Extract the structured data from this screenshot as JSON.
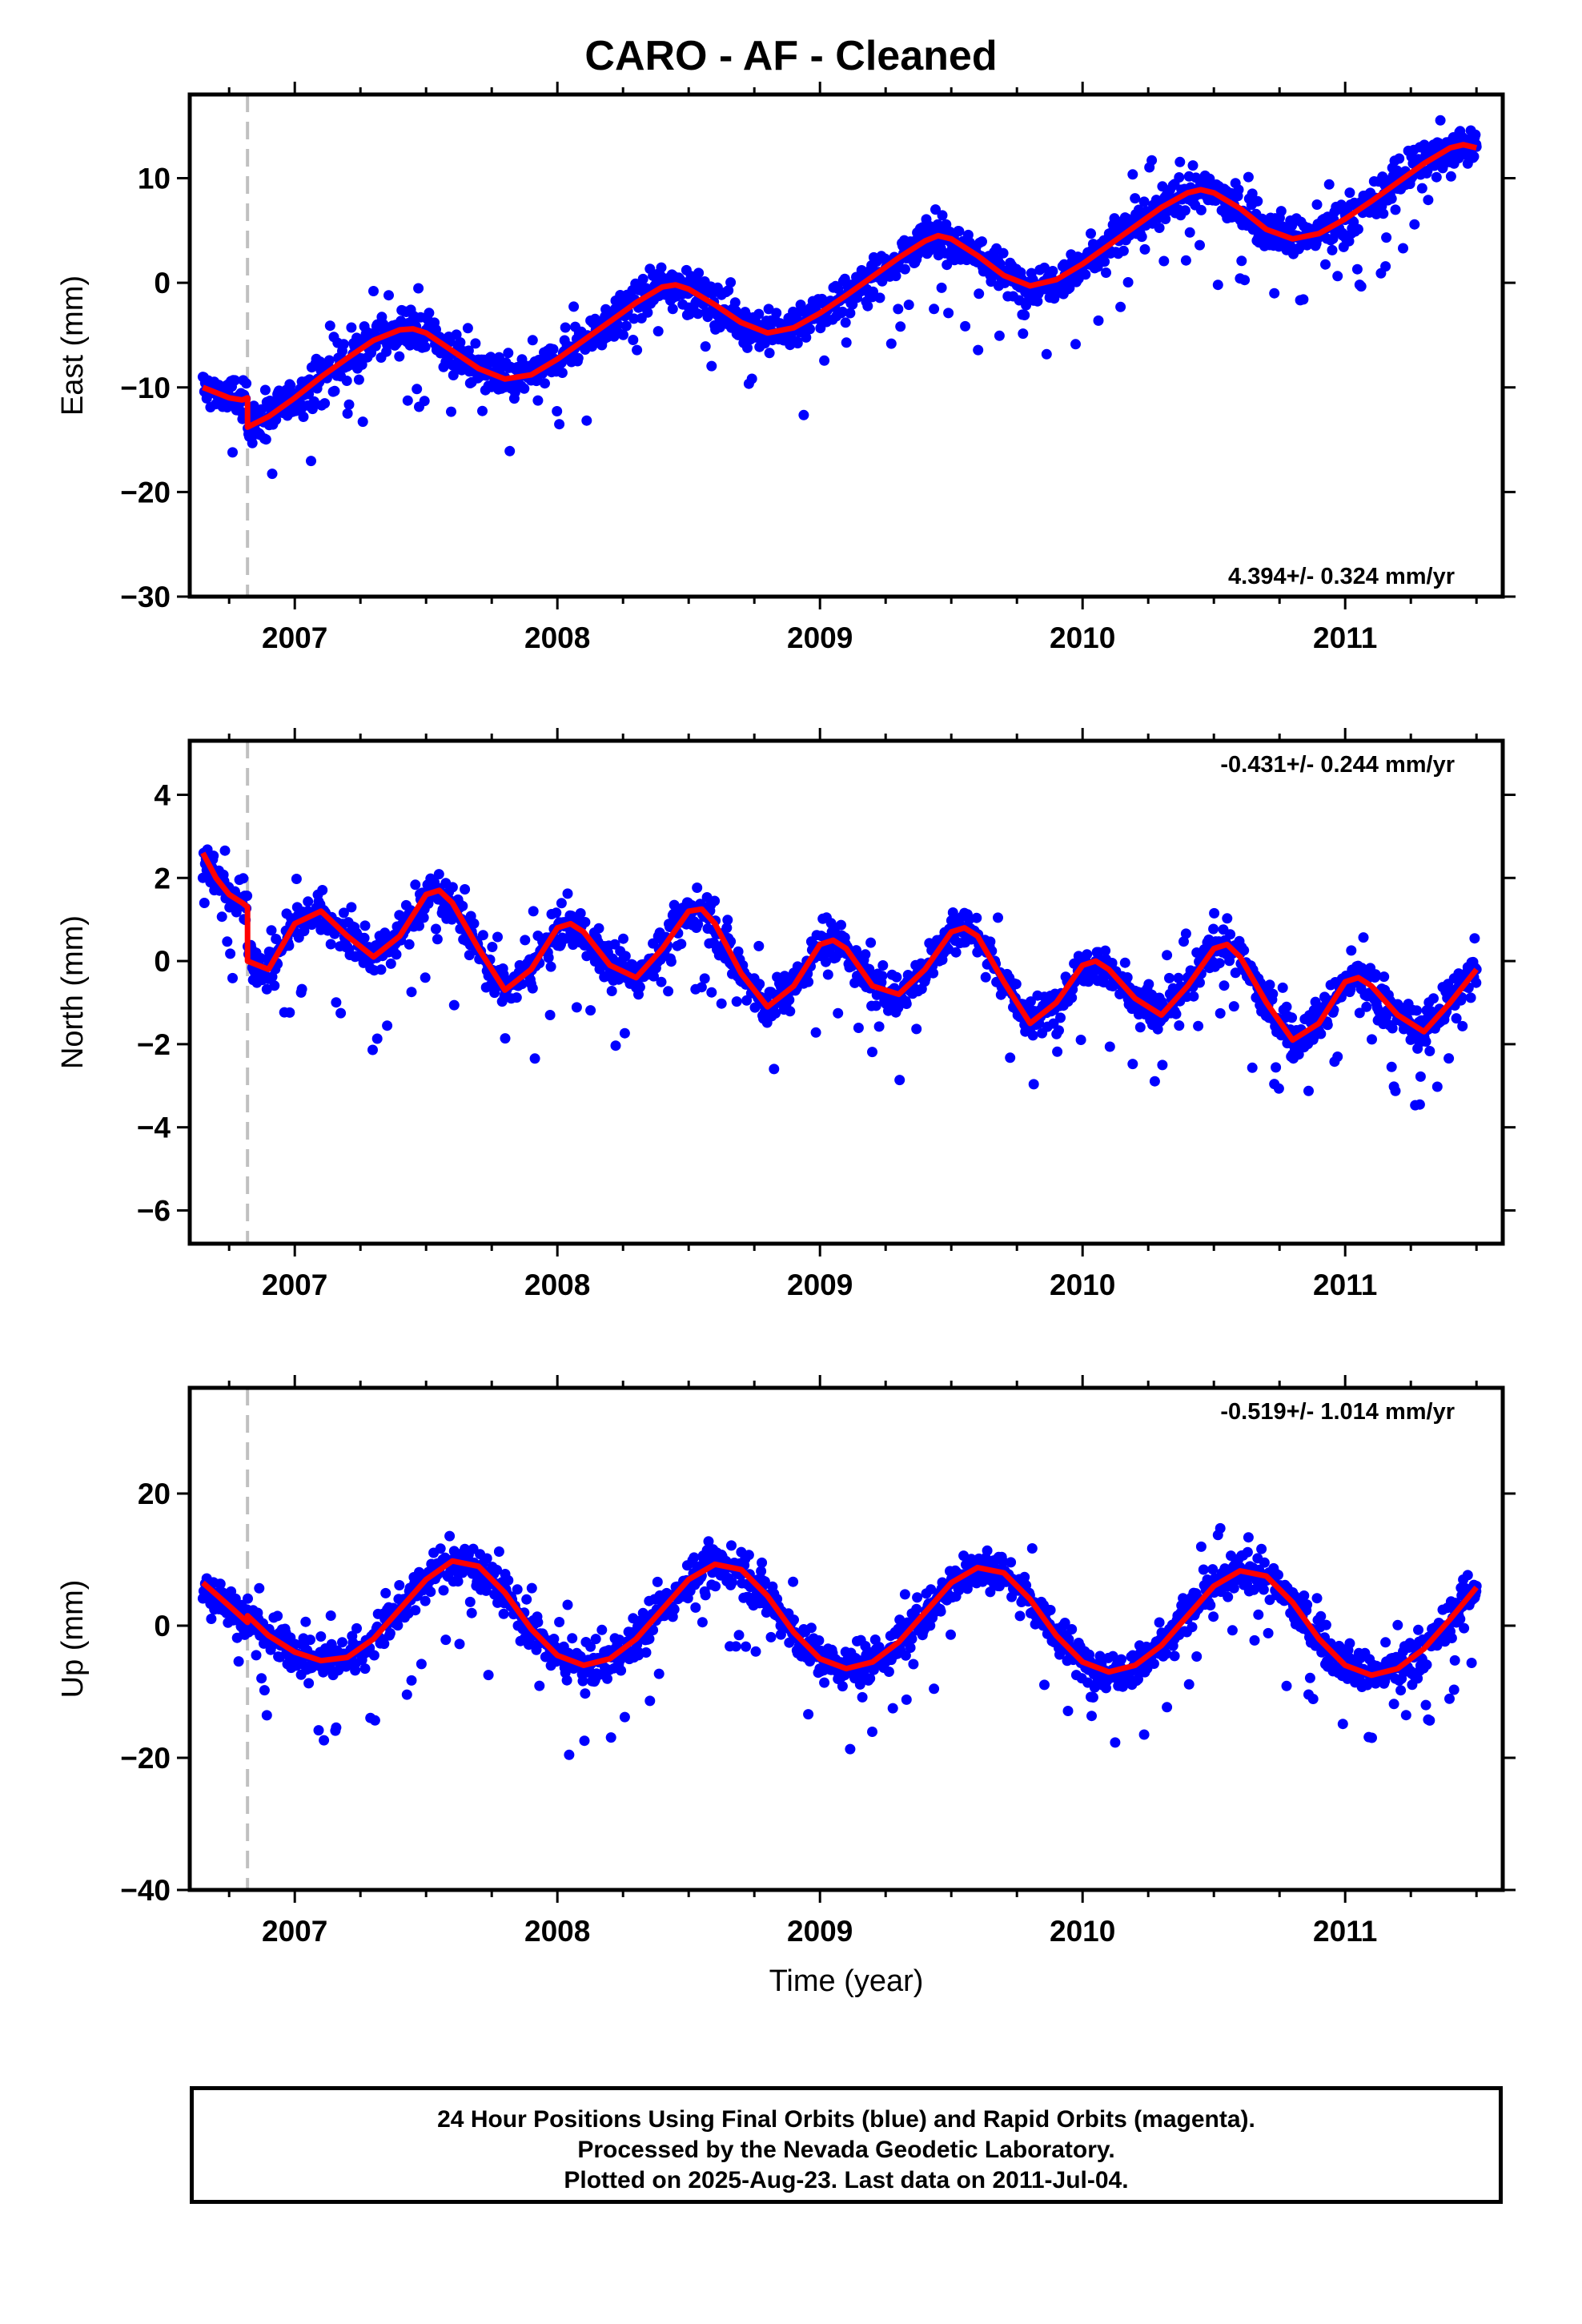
{
  "title": "CARO  - AF - Cleaned",
  "colors": {
    "final_orbits": "#0000ff",
    "model_fit": "#ff0000",
    "event_marker": "#c0c0c0",
    "frame": "#000000"
  },
  "chart_data": [
    {
      "type": "scatter",
      "component": "East",
      "ylabel": "East (mm)",
      "xlabel": "",
      "xlim": [
        2006.6,
        2011.6
      ],
      "ylim": [
        -30,
        18
      ],
      "x_ticks": [
        2007,
        2008,
        2009,
        2010,
        2011
      ],
      "y_ticks": [
        -30,
        -20,
        -10,
        0,
        10
      ],
      "y_tick_labels": [
        "−30",
        "−20",
        "−10",
        "0",
        "10"
      ],
      "rate_label": "4.394+/- 0.324 mm/yr",
      "rate_label_position": "bottom-right",
      "event_line_x": 2006.82,
      "series": [
        {
          "name": "Final Orbits (blue)",
          "kind": "points",
          "x": [
            2006.72,
            2006.9,
            2007.0,
            2007.2,
            2007.4,
            2007.5,
            2007.65,
            2007.8,
            2008.0,
            2008.2,
            2008.45,
            2008.6,
            2008.8,
            2009.0,
            2009.2,
            2009.45,
            2009.6,
            2009.8,
            2010.0,
            2010.2,
            2010.45,
            2010.6,
            2010.8,
            2011.0,
            2011.2,
            2011.4,
            2011.5
          ],
          "y": [
            -10.5,
            -13.0,
            -11.0,
            -8.0,
            -5.5,
            -4.5,
            -7.0,
            -9.0,
            -7.5,
            -4.0,
            -0.5,
            -2.5,
            -4.5,
            -3.0,
            0.5,
            4.5,
            2.5,
            0.0,
            2.0,
            5.5,
            8.5,
            6.0,
            4.5,
            6.5,
            9.0,
            12.5,
            13.0
          ]
        },
        {
          "name": "Model fit",
          "kind": "line",
          "x": [
            2006.65,
            2006.7,
            2006.75,
            2006.8,
            2006.82,
            2006.82,
            2006.9,
            2007.0,
            2007.1,
            2007.2,
            2007.3,
            2007.4,
            2007.45,
            2007.5,
            2007.6,
            2007.7,
            2007.8,
            2007.9,
            2008.0,
            2008.1,
            2008.2,
            2008.3,
            2008.4,
            2008.45,
            2008.5,
            2008.6,
            2008.7,
            2008.8,
            2008.9,
            2009.0,
            2009.1,
            2009.2,
            2009.3,
            2009.4,
            2009.45,
            2009.5,
            2009.6,
            2009.7,
            2009.8,
            2009.9,
            2010.0,
            2010.1,
            2010.2,
            2010.3,
            2010.4,
            2010.45,
            2010.5,
            2010.6,
            2010.7,
            2010.8,
            2010.9,
            2011.0,
            2011.1,
            2011.2,
            2011.3,
            2011.4,
            2011.45,
            2011.5
          ],
          "y": [
            -10.0,
            -10.5,
            -11.0,
            -11.2,
            -11.0,
            -13.8,
            -12.8,
            -11.0,
            -9.0,
            -7.2,
            -5.5,
            -4.5,
            -4.4,
            -4.8,
            -6.5,
            -8.2,
            -9.2,
            -8.8,
            -7.3,
            -5.5,
            -3.7,
            -1.9,
            -0.4,
            -0.2,
            -0.6,
            -2.1,
            -3.8,
            -4.8,
            -4.3,
            -2.9,
            -1.2,
            0.6,
            2.4,
            4.0,
            4.5,
            4.2,
            2.6,
            0.7,
            -0.3,
            0.3,
            1.8,
            3.6,
            5.4,
            7.2,
            8.6,
            8.9,
            8.6,
            7.1,
            5.1,
            4.2,
            4.7,
            6.1,
            7.8,
            9.6,
            11.4,
            12.9,
            13.2,
            12.9
          ]
        }
      ]
    },
    {
      "type": "scatter",
      "component": "North",
      "ylabel": "North (mm)",
      "xlabel": "",
      "xlim": [
        2006.6,
        2011.6
      ],
      "ylim": [
        -6.8,
        5.3
      ],
      "x_ticks": [
        2007,
        2008,
        2009,
        2010,
        2011
      ],
      "y_ticks": [
        -6,
        -4,
        -2,
        0,
        2,
        4
      ],
      "y_tick_labels": [
        "−6",
        "−4",
        "−2",
        "0",
        "2",
        "4"
      ],
      "rate_label": "-0.431+/- 0.244 mm/yr",
      "rate_label_position": "top-right",
      "event_line_x": 2006.82,
      "series": [
        {
          "name": "Final Orbits (blue)",
          "kind": "points",
          "x": [
            2006.7,
            2006.85,
            2007.05,
            2007.3,
            2007.55,
            2007.8,
            2008.05,
            2008.3,
            2008.55,
            2008.8,
            2009.05,
            2009.3,
            2009.55,
            2009.8,
            2010.05,
            2010.3,
            2010.55,
            2010.8,
            2011.05,
            2011.3,
            2011.5
          ],
          "y": [
            1.8,
            -0.3,
            1.2,
            0.2,
            1.5,
            -0.8,
            0.8,
            -0.4,
            1.2,
            -1.2,
            0.5,
            -0.8,
            0.8,
            -1.6,
            0.0,
            -1.2,
            0.4,
            -2.0,
            -0.4,
            -1.6,
            -0.2
          ]
        },
        {
          "name": "Model fit",
          "kind": "line",
          "x": [
            2006.65,
            2006.7,
            2006.75,
            2006.8,
            2006.82,
            2006.82,
            2006.9,
            2007.0,
            2007.1,
            2007.2,
            2007.3,
            2007.4,
            2007.5,
            2007.55,
            2007.6,
            2007.7,
            2007.8,
            2007.9,
            2008.0,
            2008.05,
            2008.1,
            2008.2,
            2008.3,
            2008.4,
            2008.5,
            2008.55,
            2008.6,
            2008.7,
            2008.8,
            2008.9,
            2009.0,
            2009.05,
            2009.1,
            2009.2,
            2009.3,
            2009.4,
            2009.5,
            2009.55,
            2009.6,
            2009.7,
            2009.8,
            2009.9,
            2010.0,
            2010.05,
            2010.1,
            2010.2,
            2010.3,
            2010.4,
            2010.5,
            2010.55,
            2010.6,
            2010.7,
            2010.8,
            2010.9,
            2011.0,
            2011.05,
            2011.1,
            2011.2,
            2011.3,
            2011.4,
            2011.5
          ],
          "y": [
            2.6,
            2.0,
            1.6,
            1.4,
            1.3,
            0.0,
            -0.2,
            0.9,
            1.2,
            0.6,
            0.1,
            0.6,
            1.6,
            1.7,
            1.4,
            0.3,
            -0.7,
            -0.2,
            0.8,
            0.9,
            0.7,
            -0.1,
            -0.4,
            0.3,
            1.2,
            1.25,
            0.9,
            -0.3,
            -1.1,
            -0.6,
            0.4,
            0.5,
            0.3,
            -0.6,
            -0.8,
            -0.2,
            0.7,
            0.8,
            0.6,
            -0.5,
            -1.5,
            -1.0,
            -0.1,
            0.0,
            -0.2,
            -0.9,
            -1.3,
            -0.6,
            0.3,
            0.4,
            0.1,
            -1.0,
            -1.9,
            -1.5,
            -0.5,
            -0.4,
            -0.6,
            -1.3,
            -1.7,
            -1.0,
            -0.2
          ]
        }
      ]
    },
    {
      "type": "scatter",
      "component": "Up",
      "ylabel": "Up (mm)",
      "xlabel": "Time (year)",
      "xlim": [
        2006.6,
        2011.6
      ],
      "ylim": [
        -40,
        36
      ],
      "x_ticks": [
        2007,
        2008,
        2009,
        2010,
        2011
      ],
      "y_ticks": [
        -40,
        -20,
        0,
        20
      ],
      "y_tick_labels": [
        "−40",
        "−20",
        "0",
        "20"
      ],
      "rate_label": "-0.519+/- 1.014 mm/yr",
      "rate_label_position": "top-right",
      "event_line_x": 2006.82,
      "series": [
        {
          "name": "Final Orbits (blue)",
          "kind": "points",
          "x": [
            2006.68,
            2006.9,
            2007.1,
            2007.35,
            2007.6,
            2007.85,
            2008.1,
            2008.35,
            2008.6,
            2008.85,
            2009.1,
            2009.35,
            2009.6,
            2009.85,
            2010.1,
            2010.35,
            2010.6,
            2010.85,
            2011.1,
            2011.35,
            2011.5
          ],
          "y": [
            6.0,
            -2.0,
            -5.5,
            0.0,
            10.0,
            0.0,
            -6.0,
            -2.0,
            9.5,
            0.0,
            -6.5,
            -2.0,
            9.0,
            0.0,
            -7.0,
            -2.0,
            8.5,
            0.0,
            -8.0,
            -3.0,
            6.0
          ]
        },
        {
          "name": "Model fit",
          "kind": "line",
          "x": [
            2006.65,
            2006.75,
            2006.82,
            2006.82,
            2006.9,
            2007.0,
            2007.1,
            2007.2,
            2007.3,
            2007.4,
            2007.5,
            2007.6,
            2007.7,
            2007.8,
            2007.9,
            2008.0,
            2008.1,
            2008.2,
            2008.3,
            2008.4,
            2008.5,
            2008.6,
            2008.7,
            2008.8,
            2008.9,
            2009.0,
            2009.1,
            2009.2,
            2009.3,
            2009.4,
            2009.5,
            2009.6,
            2009.7,
            2009.8,
            2009.9,
            2010.0,
            2010.1,
            2010.2,
            2010.3,
            2010.4,
            2010.5,
            2010.6,
            2010.7,
            2010.8,
            2010.9,
            2011.0,
            2011.1,
            2011.2,
            2011.3,
            2011.4,
            2011.5
          ],
          "y": [
            6.5,
            3.0,
            0.5,
            1.5,
            -1.5,
            -4.0,
            -5.3,
            -4.8,
            -2.0,
            2.5,
            7.0,
            9.8,
            9.0,
            5.0,
            -0.5,
            -4.5,
            -6.0,
            -5.0,
            -2.0,
            2.5,
            7.0,
            9.3,
            8.5,
            4.5,
            -1.0,
            -5.0,
            -6.5,
            -5.5,
            -2.5,
            2.0,
            6.5,
            8.8,
            8.0,
            4.0,
            -1.5,
            -5.5,
            -7.0,
            -6.0,
            -3.0,
            1.5,
            6.0,
            8.3,
            7.5,
            3.5,
            -2.0,
            -6.0,
            -7.5,
            -6.5,
            -3.5,
            1.0,
            5.8
          ]
        }
      ]
    }
  ],
  "footer": {
    "line1": "24 Hour Positions Using Final Orbits (blue) and Rapid Orbits (magenta).",
    "line2": "Processed by the Nevada Geodetic Laboratory.",
    "line3": "Plotted on 2025-Aug-23. Last data on 2011-Jul-04."
  }
}
